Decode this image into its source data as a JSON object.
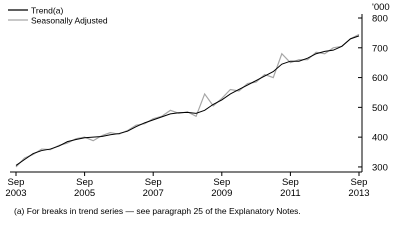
{
  "chart_data": {
    "type": "line",
    "x": [
      "2003-09",
      "2003-12",
      "2004-03",
      "2004-06",
      "2004-09",
      "2004-12",
      "2005-03",
      "2005-06",
      "2005-09",
      "2005-12",
      "2006-03",
      "2006-06",
      "2006-09",
      "2006-12",
      "2007-03",
      "2007-06",
      "2007-09",
      "2007-12",
      "2008-03",
      "2008-06",
      "2008-09",
      "2008-12",
      "2009-03",
      "2009-06",
      "2009-09",
      "2009-12",
      "2010-03",
      "2010-06",
      "2010-09",
      "2010-12",
      "2011-03",
      "2011-06",
      "2011-09",
      "2011-12",
      "2012-03",
      "2012-06",
      "2012-09",
      "2012-12",
      "2013-03",
      "2013-06",
      "2013-09"
    ],
    "series": [
      {
        "name": "Trend(a)",
        "color": "#000000",
        "values": [
          305,
          325,
          345,
          355,
          360,
          370,
          385,
          392,
          398,
          400,
          402,
          408,
          412,
          420,
          435,
          448,
          458,
          468,
          478,
          482,
          483,
          480,
          490,
          510,
          525,
          545,
          560,
          575,
          590,
          605,
          620,
          645,
          655,
          655,
          665,
          680,
          688,
          692,
          705,
          730,
          740
        ]
      },
      {
        "name": "Seasonally Adjusted",
        "color": "#a6a6a6",
        "values": [
          300,
          330,
          342,
          360,
          358,
          372,
          380,
          395,
          400,
          388,
          405,
          415,
          410,
          422,
          440,
          445,
          462,
          470,
          490,
          480,
          485,
          470,
          545,
          505,
          530,
          560,
          555,
          580,
          585,
          610,
          600,
          680,
          650,
          660,
          660,
          685,
          680,
          700,
          705,
          730,
          745
        ]
      }
    ],
    "y_unit": "'000",
    "ylim": [
      283,
      800
    ],
    "yticks": [
      300,
      400,
      500,
      600,
      700,
      800
    ],
    "xlim": [
      "2003-09",
      "2013-09"
    ],
    "xticks": [
      {
        "value": "2003-09",
        "label": [
          "Sep",
          "2003"
        ]
      },
      {
        "value": "2005-09",
        "label": [
          "Sep",
          "2005"
        ]
      },
      {
        "value": "2007-09",
        "label": [
          "Sep",
          "2007"
        ]
      },
      {
        "value": "2009-09",
        "label": [
          "Sep",
          "2009"
        ]
      },
      {
        "value": "2011-09",
        "label": [
          "Sep",
          "2011"
        ]
      },
      {
        "value": "2013-09",
        "label": [
          "Sep",
          "2013"
        ]
      }
    ],
    "footnote": "(a) For breaks in trend series — see paragraph 25 of the Explanatory Notes."
  }
}
